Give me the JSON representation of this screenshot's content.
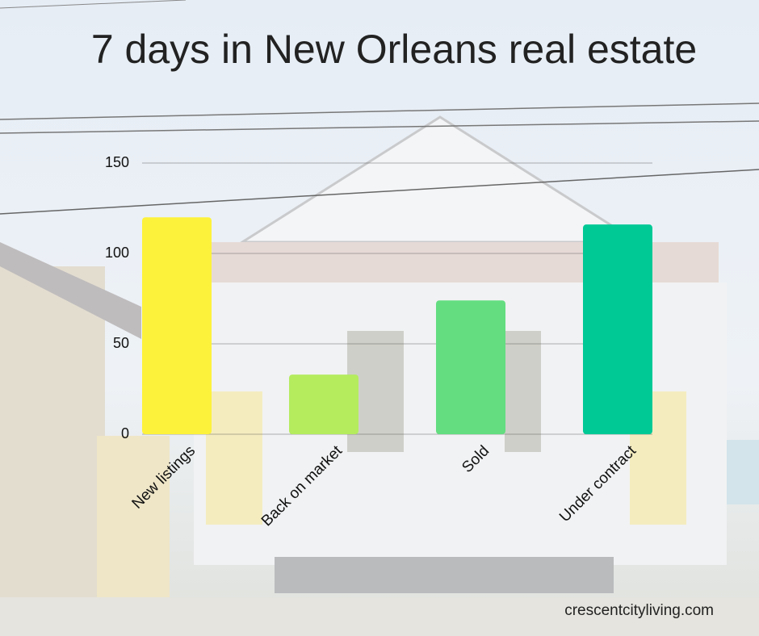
{
  "chart_data": {
    "type": "bar",
    "title": "7 days in New Orleans real estate",
    "categories": [
      "New listings",
      "Back on market",
      "Sold",
      "Under contract"
    ],
    "values": [
      120,
      33,
      74,
      116
    ],
    "colors": [
      "#fdf23b",
      "#b4ec5e",
      "#63dd80",
      "#00c996"
    ],
    "ylim": [
      0,
      150
    ],
    "yticks": [
      0,
      50,
      100,
      150
    ],
    "grid": true,
    "source": "crescentcityliving.com"
  }
}
